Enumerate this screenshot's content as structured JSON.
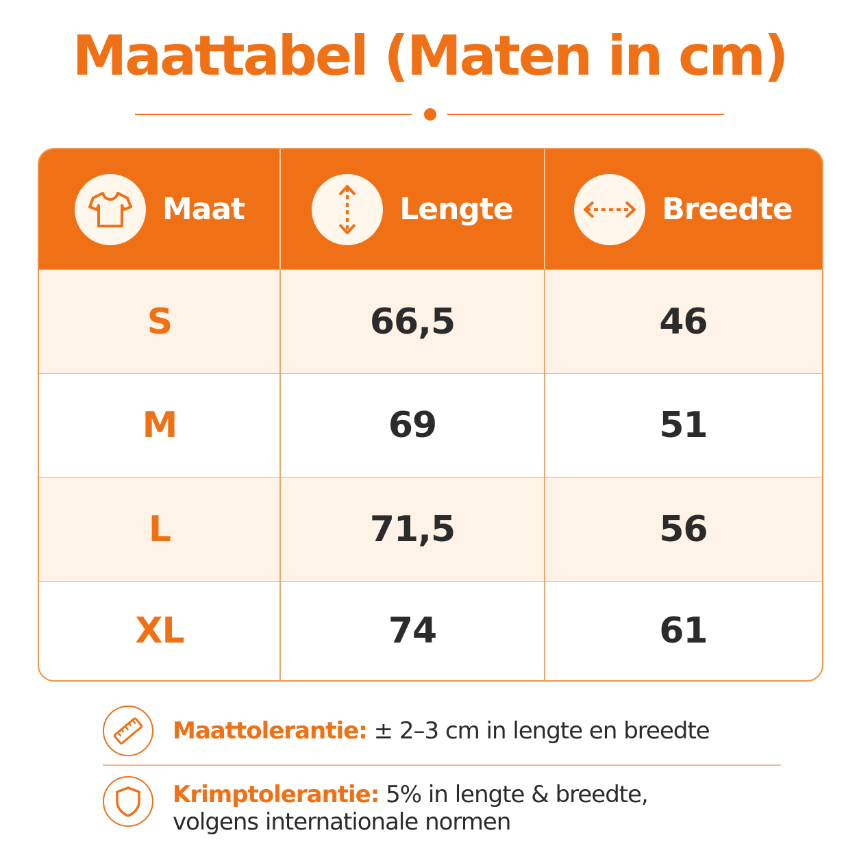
{
  "title": "Maattabel (Maten in cm)",
  "colors": {
    "accent": "#f07016",
    "row_tint": "#fff2e6",
    "text": "#2b2b2b"
  },
  "table": {
    "headers": [
      {
        "label": "Maat",
        "icon": "tshirt-icon"
      },
      {
        "label": "Lengte",
        "icon": "vertical-arrow-icon"
      },
      {
        "label": "Breedte",
        "icon": "horizontal-arrow-icon"
      }
    ],
    "rows": [
      {
        "size": "S",
        "length": "66,5",
        "width": "46"
      },
      {
        "size": "M",
        "length": "69",
        "width": "51"
      },
      {
        "size": "L",
        "length": "71,5",
        "width": "56"
      },
      {
        "size": "XL",
        "length": "74",
        "width": "61"
      }
    ]
  },
  "notes": [
    {
      "icon": "ruler-icon",
      "key": "Maattolerantie:",
      "text": "± 2–3 cm in lengte en breedte",
      "text2": ""
    },
    {
      "icon": "shield-icon",
      "key": "Krimptolerantie:",
      "text": "5% in lengte & breedte,",
      "text2": "volgens internationale normen"
    }
  ]
}
